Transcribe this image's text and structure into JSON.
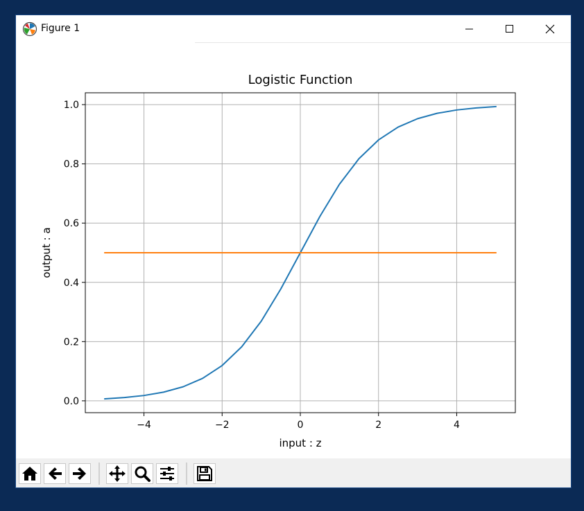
{
  "window": {
    "title": "Figure 1",
    "controls": {
      "minimize_icon": "minimize-icon",
      "maximize_icon": "maximize-icon",
      "close_icon": "close-icon"
    }
  },
  "toolbar": {
    "buttons": [
      {
        "id": "home",
        "icon": "home-icon"
      },
      {
        "id": "back",
        "icon": "arrow-left-icon"
      },
      {
        "id": "forward",
        "icon": "arrow-right-icon"
      },
      {
        "id": "pan",
        "icon": "move-icon"
      },
      {
        "id": "zoom",
        "icon": "magnifier-icon"
      },
      {
        "id": "configure",
        "icon": "sliders-icon"
      },
      {
        "id": "save",
        "icon": "floppy-disk-icon"
      }
    ]
  },
  "chart_data": {
    "type": "line",
    "title": "Logistic Function",
    "xlabel": "input : z",
    "ylabel": "output : a",
    "xlim": [
      -5.5,
      5.5
    ],
    "ylim": [
      -0.04,
      1.04
    ],
    "xticks": [
      -4,
      -2,
      0,
      2,
      4
    ],
    "xtick_labels": [
      "−4",
      "−2",
      "0",
      "2",
      "4"
    ],
    "yticks": [
      0.0,
      0.2,
      0.4,
      0.6,
      0.8,
      1.0
    ],
    "ytick_labels": [
      "0.0",
      "0.2",
      "0.4",
      "0.6",
      "0.8",
      "1.0"
    ],
    "grid": true,
    "series": [
      {
        "color": "#1f77b4",
        "x": [
          -5,
          -4.5,
          -4,
          -3.5,
          -3,
          -2.5,
          -2,
          -1.5,
          -1,
          -0.5,
          0,
          0.5,
          1,
          1.5,
          2,
          2.5,
          3,
          3.5,
          4,
          4.5,
          5
        ],
        "y": [
          0.0067,
          0.011,
          0.018,
          0.0293,
          0.0474,
          0.0759,
          0.1192,
          0.1824,
          0.2689,
          0.3775,
          0.5,
          0.6225,
          0.7311,
          0.8176,
          0.8808,
          0.9241,
          0.9526,
          0.9707,
          0.982,
          0.989,
          0.9933
        ]
      },
      {
        "color": "#ff7f0e",
        "x": [
          -5,
          5
        ],
        "y": [
          0.5,
          0.5
        ]
      }
    ]
  }
}
